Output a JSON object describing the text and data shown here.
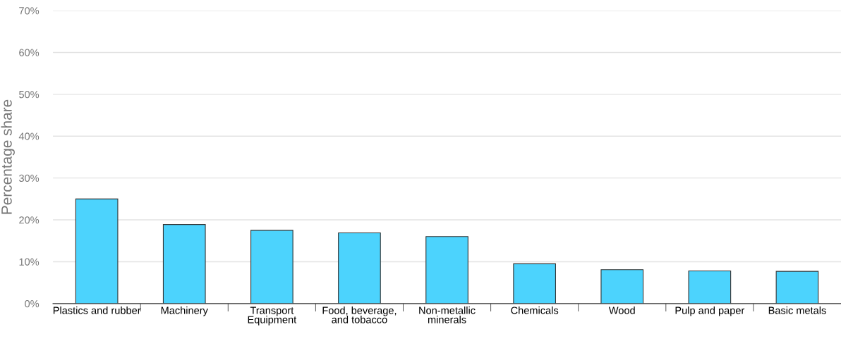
{
  "chart_data": {
    "type": "bar",
    "ylabel": "Percentage share",
    "categories": [
      "Plastics and rubber",
      "Machinery",
      "Transport\nEquipment",
      "Food, beverage,\nand tobacco",
      "Non-metallic\nminerals",
      "Chemicals",
      "Wood",
      "Pulp and paper",
      "Basic metals"
    ],
    "values": [
      25.0,
      18.9,
      17.5,
      16.9,
      16.0,
      9.5,
      8.1,
      7.8,
      7.7
    ],
    "color": "#4cd3fd",
    "ylim": [
      0,
      70
    ],
    "yticks": [
      {
        "value": 0,
        "label": "0%"
      },
      {
        "value": 10,
        "label": "10%"
      },
      {
        "value": 20,
        "label": "20%"
      },
      {
        "value": 30,
        "label": "30%"
      },
      {
        "value": 40,
        "label": "40%"
      },
      {
        "value": 50,
        "label": "50%"
      },
      {
        "value": 60,
        "label": "60%"
      },
      {
        "value": 70,
        "label": "70%"
      }
    ],
    "grid": "y"
  }
}
